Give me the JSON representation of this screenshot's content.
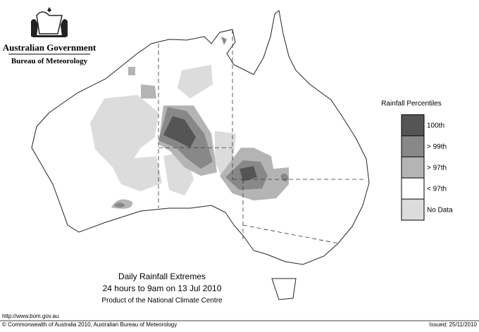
{
  "header": {
    "government": "Australian Government",
    "bureau": "Bureau of Meteorology"
  },
  "legend": {
    "title": "Rainfall Percentiles",
    "items": [
      {
        "label": "100th",
        "color": "#555555"
      },
      {
        "label": "> 99th",
        "color": "#888888"
      },
      {
        "label": "> 97th",
        "color": "#b4b4b4"
      },
      {
        "label": "< 97th",
        "color": "#ffffff"
      },
      {
        "label": "No Data",
        "color": "#dcdcdc"
      }
    ]
  },
  "caption": {
    "title": "Daily Rainfall Extremes",
    "period": "24 hours to 9am on 13 Jul 2010",
    "product": "Product of the National Climate Centre"
  },
  "footer": {
    "url": "http://www.bom.gov.au",
    "copyright": "© Commonwealth of Australia 2010, Australian Bureau of Meteorology",
    "issued": "Issued: 25/11/2010"
  }
}
